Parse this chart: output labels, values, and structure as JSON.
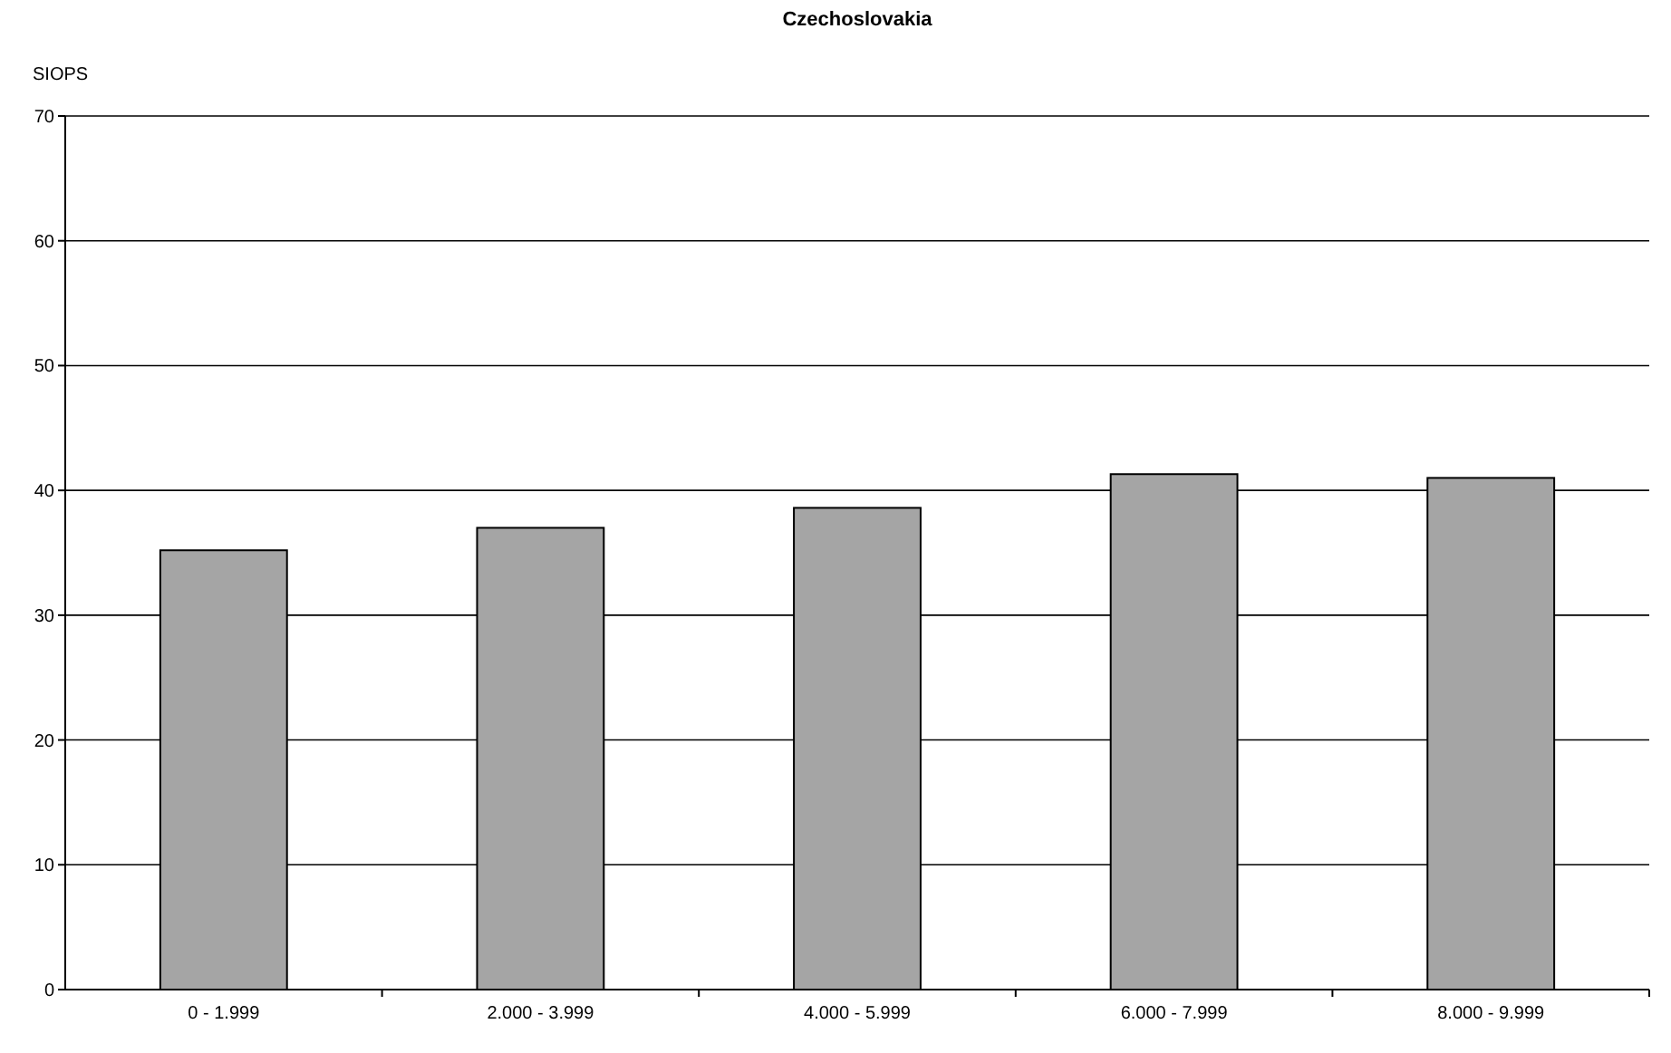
{
  "chart_data": {
    "type": "bar",
    "title": "Czechoslovakia",
    "ylabel": "SIOPS",
    "categories": [
      "0 - 1.999",
      "2.000 - 3.999",
      "4.000 - 5.999",
      "6.000 - 7.999",
      "8.000 - 9.999"
    ],
    "values": [
      35.2,
      37.0,
      38.6,
      41.3,
      41.0
    ],
    "color": "#a5a5a5",
    "ylim": [
      0,
      70
    ],
    "yticks": [
      0,
      10,
      20,
      30,
      40,
      50,
      60,
      70
    ],
    "grid": "y"
  }
}
